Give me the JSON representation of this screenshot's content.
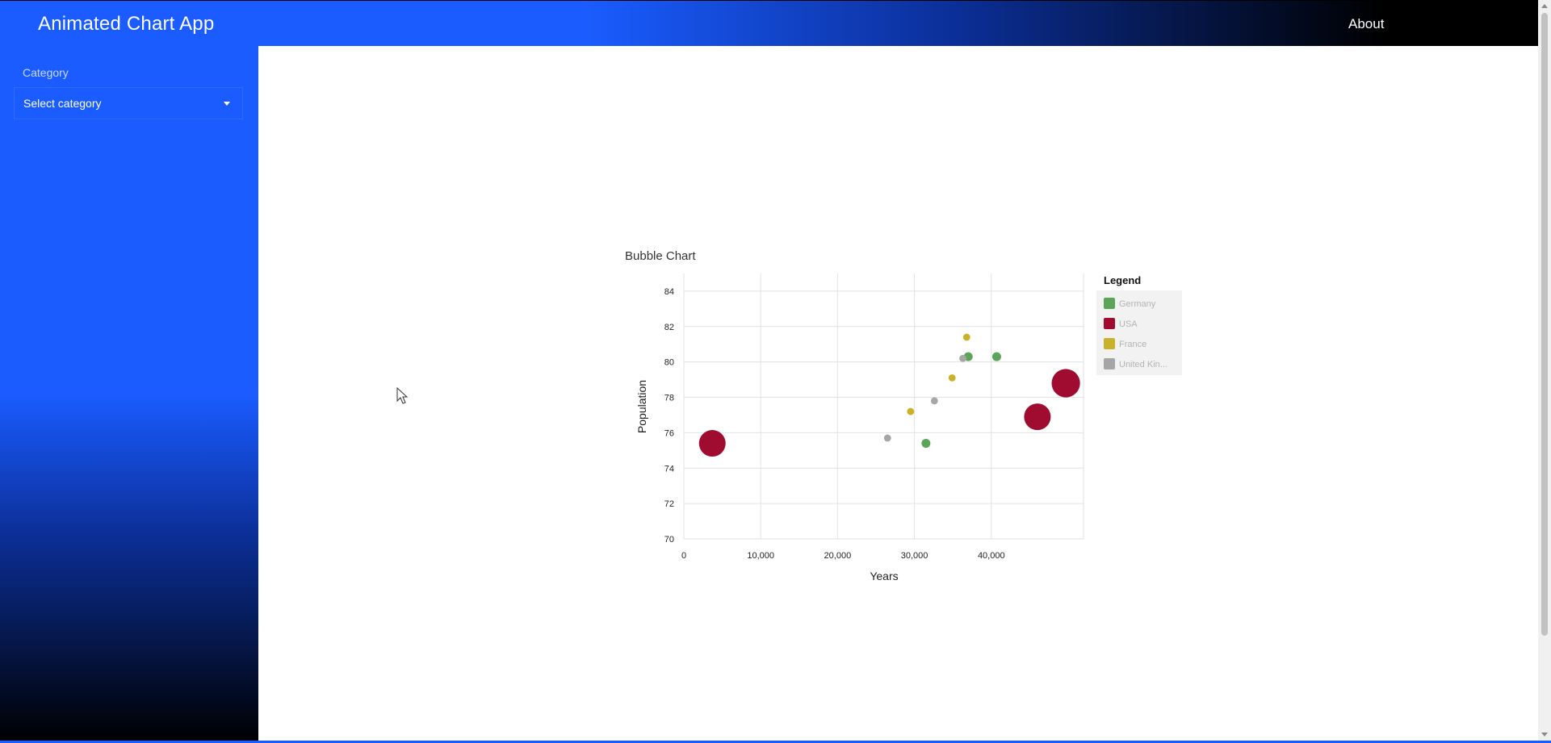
{
  "header": {
    "title": "Animated Chart App",
    "about_label": "About"
  },
  "sidebar": {
    "category_label": "Category",
    "category_select": {
      "selected": "Select category"
    }
  },
  "legend": {
    "title": "Legend"
  },
  "colors": {
    "header_blue": "#1a5cff",
    "germany": "#5aa55a",
    "usa": "#a00c30",
    "france": "#c9b22a",
    "united_kingdom": "#a6a6a6"
  },
  "icons": {
    "dropdown": "chevron-down-icon",
    "cursor": "mouse-pointer-icon",
    "scroll_up": "scroll-up-arrow-icon",
    "scroll_down": "scroll-down-arrow-icon"
  },
  "chart_data": {
    "type": "scatter",
    "title": "Bubble Chart",
    "xlabel": "Years",
    "ylabel": "Population",
    "xlim": [
      0,
      52000
    ],
    "ylim": [
      70,
      85
    ],
    "x_ticks": [
      "0",
      "10,000",
      "20,000",
      "30,000",
      "40,000"
    ],
    "y_ticks": [
      "70",
      "72",
      "74",
      "76",
      "78",
      "80",
      "82",
      "84"
    ],
    "grid": true,
    "legend_position": "right",
    "legend_labels": [
      "Germany",
      "USA",
      "France",
      "United Kin..."
    ],
    "series": [
      {
        "name": "Germany",
        "color": "#5aa55a",
        "points": [
          {
            "x": 31500,
            "y": 75.4,
            "size": 1
          },
          {
            "x": 37000,
            "y": 80.3,
            "size": 1
          },
          {
            "x": 40700,
            "y": 80.3,
            "size": 1
          }
        ]
      },
      {
        "name": "USA",
        "color": "#a00c30",
        "points": [
          {
            "x": 3700,
            "y": 75.4,
            "size": 3
          },
          {
            "x": 46000,
            "y": 76.9,
            "size": 3
          },
          {
            "x": 49700,
            "y": 78.8,
            "size": 3.2
          }
        ]
      },
      {
        "name": "France",
        "color": "#c9b22a",
        "points": [
          {
            "x": 29500,
            "y": 77.2,
            "size": 0.8
          },
          {
            "x": 34900,
            "y": 79.1,
            "size": 0.8
          },
          {
            "x": 36800,
            "y": 81.4,
            "size": 0.8
          }
        ]
      },
      {
        "name": "United Kingdom",
        "color": "#a6a6a6",
        "points": [
          {
            "x": 26500,
            "y": 75.7,
            "size": 0.8
          },
          {
            "x": 32600,
            "y": 77.8,
            "size": 0.8
          },
          {
            "x": 36300,
            "y": 80.2,
            "size": 0.8
          }
        ]
      }
    ]
  }
}
